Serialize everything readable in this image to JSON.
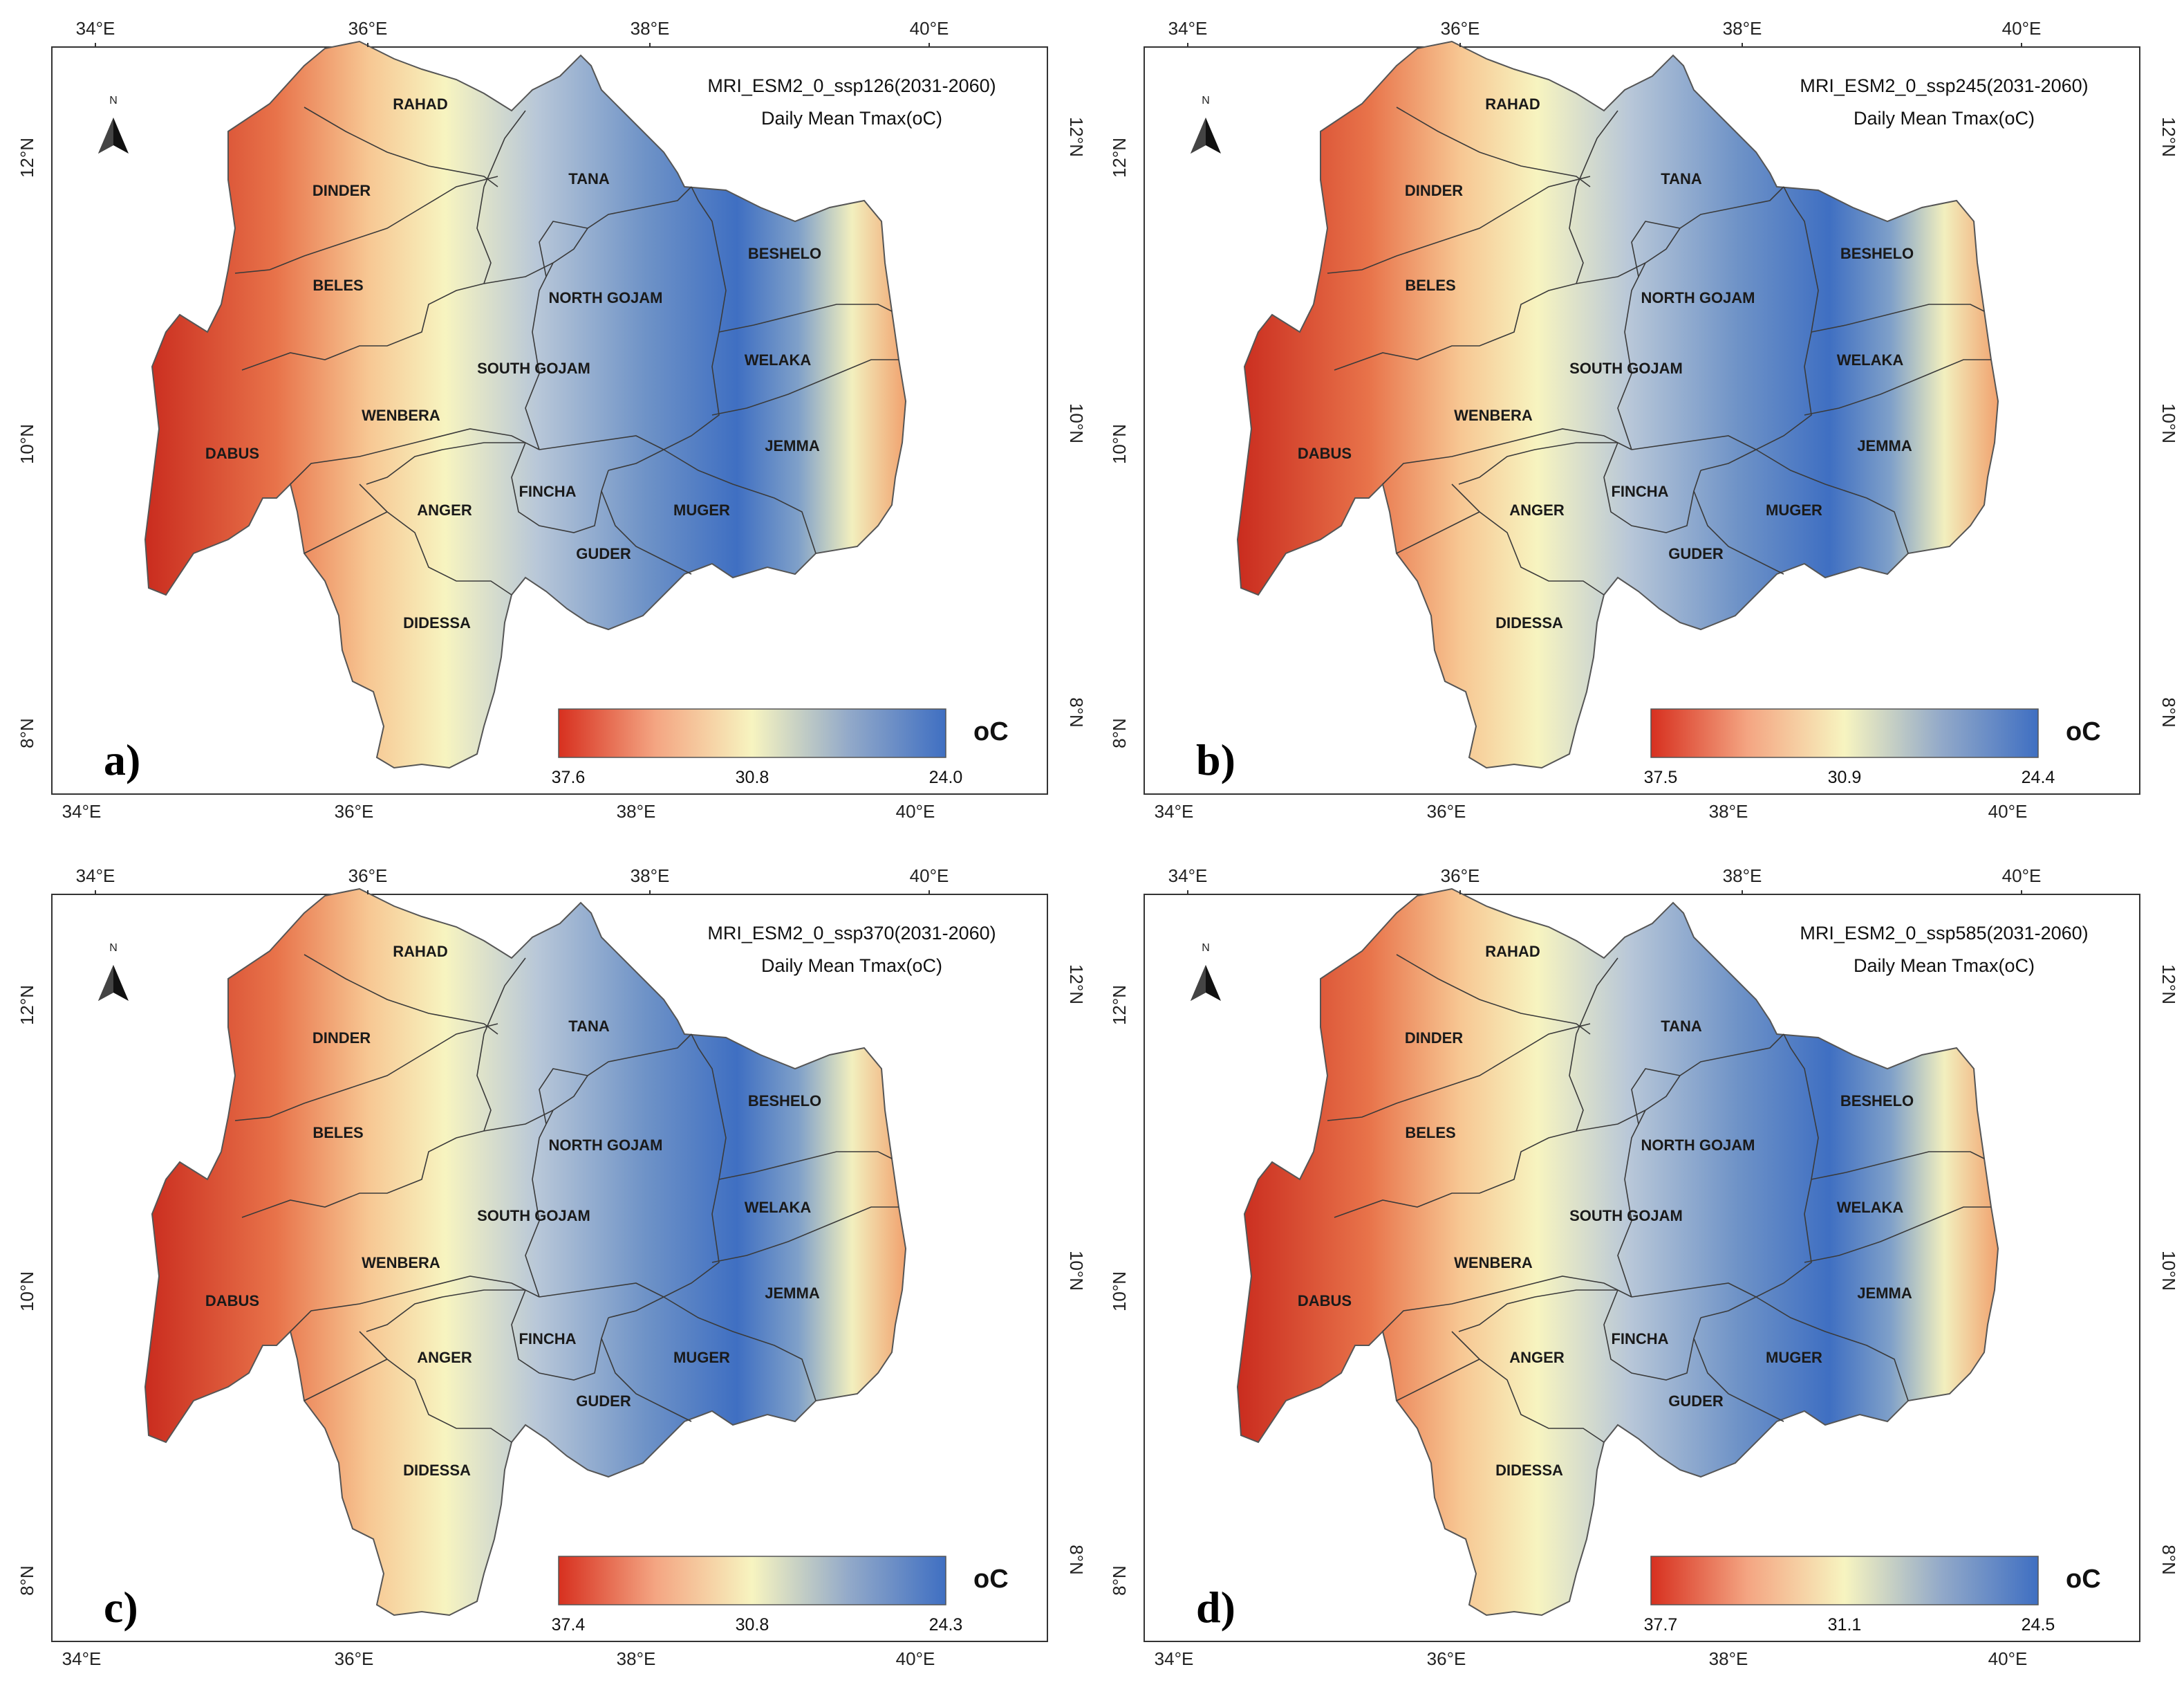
{
  "regions": [
    "RAHAD",
    "DINDER",
    "BELES",
    "DABUS",
    "WENBERA",
    "TANA",
    "NORTH GOJAM",
    "SOUTH GOJAM",
    "BESHELO",
    "WELAKA",
    "JEMMA",
    "ANGER",
    "FINCHA",
    "GUDER",
    "MUGER",
    "DIDESSA"
  ],
  "lon_ticks": [
    "34°E",
    "36°E",
    "38°E",
    "40°E"
  ],
  "lat_ticks": [
    "12°N",
    "10°N",
    "8°N"
  ],
  "north_label": "N",
  "colors": {
    "hot": "#d7301f",
    "warm": "#f4a582",
    "mid": "#f7f4c0",
    "cool": "#92a9c9",
    "cold": "#3f6fc2"
  },
  "panels": [
    {
      "letter": "a)",
      "title": "MRI_ESM2_0_ssp126(2031-2060)",
      "subtitle": "Daily Mean Tmax(oC)",
      "legend": {
        "max": "37.6",
        "mid": "30.8",
        "min": "24.0",
        "unit": "oC"
      }
    },
    {
      "letter": "b)",
      "title": "MRI_ESM2_0_ssp245(2031-2060)",
      "subtitle": "Daily Mean Tmax(oC)",
      "legend": {
        "max": "37.5",
        "mid": "30.9",
        "min": "24.4",
        "unit": "oC"
      }
    },
    {
      "letter": "c)",
      "title": "MRI_ESM2_0_ssp370(2031-2060)",
      "subtitle": "Daily Mean Tmax(oC)",
      "legend": {
        "max": "37.4",
        "mid": "30.8",
        "min": "24.3",
        "unit": "oC"
      }
    },
    {
      "letter": "d)",
      "title": "MRI_ESM2_0_ssp585(2031-2060)",
      "subtitle": "Daily Mean Tmax(oC)",
      "legend": {
        "max": "37.7",
        "mid": "31.1",
        "min": "24.5",
        "unit": "oC"
      }
    }
  ]
}
